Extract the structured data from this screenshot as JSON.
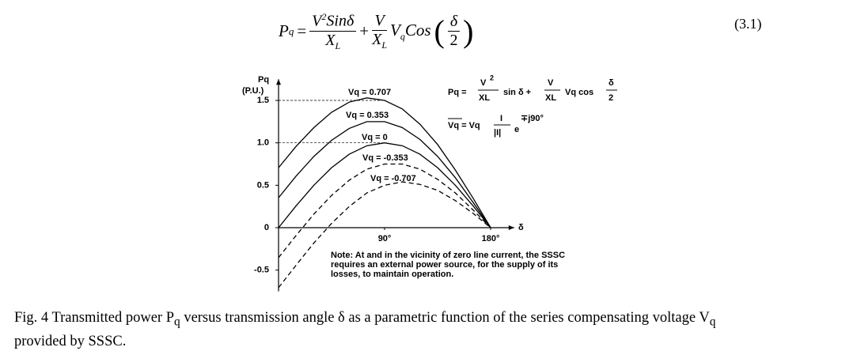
{
  "equation": {
    "lhs": "P",
    "lhs_sub": "q",
    "eq": "=",
    "num1": "V",
    "num1_sup": "2",
    "num1_fn": "Sinδ",
    "den1": "X",
    "den1_sub": "L",
    "plus": "+",
    "num2": "V",
    "den2": "X",
    "den2_sub": "L",
    "vq": "V",
    "vq_sub": "q",
    "cos": "Cos",
    "arg_num": "δ",
    "arg_den": "2",
    "number": "(3.1)"
  },
  "chart_data": {
    "type": "line",
    "x_label": "δ",
    "y_label": "Pq",
    "y_label_unit": "(P.U.)",
    "x": [
      0,
      15,
      30,
      45,
      60,
      75,
      90,
      105,
      120,
      135,
      150,
      165,
      180
    ],
    "xlim": [
      0,
      200
    ],
    "xticks": [
      {
        "value": 90,
        "label": "90°"
      },
      {
        "value": 180,
        "label": "180°"
      }
    ],
    "ylim": [
      -0.75,
      1.75
    ],
    "yticks": [
      {
        "value": 1.5,
        "label": "1.5"
      },
      {
        "value": 1,
        "label": "1.0"
      },
      0.5,
      0,
      -0.5
    ],
    "series": [
      {
        "name": "Vq = 0.707",
        "color": "#000000",
        "dashed": false,
        "values": [
          0.707,
          0.96,
          1.18,
          1.36,
          1.48,
          1.53,
          1.5,
          1.4,
          1.22,
          0.98,
          0.68,
          0.35,
          0
        ]
      },
      {
        "name": "Vq = 0.353",
        "color": "#000000",
        "dashed": false,
        "values": [
          0.353,
          0.61,
          0.84,
          1.03,
          1.17,
          1.25,
          1.25,
          1.18,
          1.04,
          0.84,
          0.59,
          0.3,
          0
        ]
      },
      {
        "name": "Vq = 0",
        "color": "#000000",
        "dashed": false,
        "values": [
          0,
          0.259,
          0.5,
          0.707,
          0.866,
          0.966,
          1,
          0.966,
          0.866,
          0.707,
          0.5,
          0.259,
          0
        ]
      },
      {
        "name": "Vq = -0.353",
        "color": "#000000",
        "dashed": true,
        "values": [
          -0.353,
          -0.09,
          0.16,
          0.38,
          0.56,
          0.69,
          0.75,
          0.75,
          0.69,
          0.57,
          0.41,
          0.21,
          0
        ]
      },
      {
        "name": "Vq = -0.707",
        "color": "#000000",
        "dashed": true,
        "values": [
          -0.707,
          -0.44,
          -0.18,
          0.05,
          0.25,
          0.41,
          0.5,
          0.54,
          0.51,
          0.44,
          0.32,
          0.17,
          0
        ]
      }
    ],
    "formula": {
      "lhs": "Pq =",
      "f1_num": "V",
      "f1_sup": "2",
      "f1_den": "XL",
      "sin": "sin δ +",
      "f2_num": "V",
      "f2_den": "XL",
      "vqcos": "Vq cos",
      "f3_num": "δ",
      "f3_den": "2",
      "lhs2": "Vq = Vq",
      "f4_num": "I",
      "f4_den": "|I|",
      "e": "e",
      "exp": "∓j90°"
    },
    "note": [
      "Note: At and in the vicinity of zero line current, the SSSC",
      "requires an external power source, for the supply of its",
      "losses, to maintain operation."
    ]
  },
  "caption": {
    "part1": "Fig. 4 Transmitted power P",
    "sub1": "q",
    "part2": " versus transmission angle δ as a parametric function of the series compensating voltage V",
    "sub2": "q",
    "part3": "provided by SSSC."
  }
}
